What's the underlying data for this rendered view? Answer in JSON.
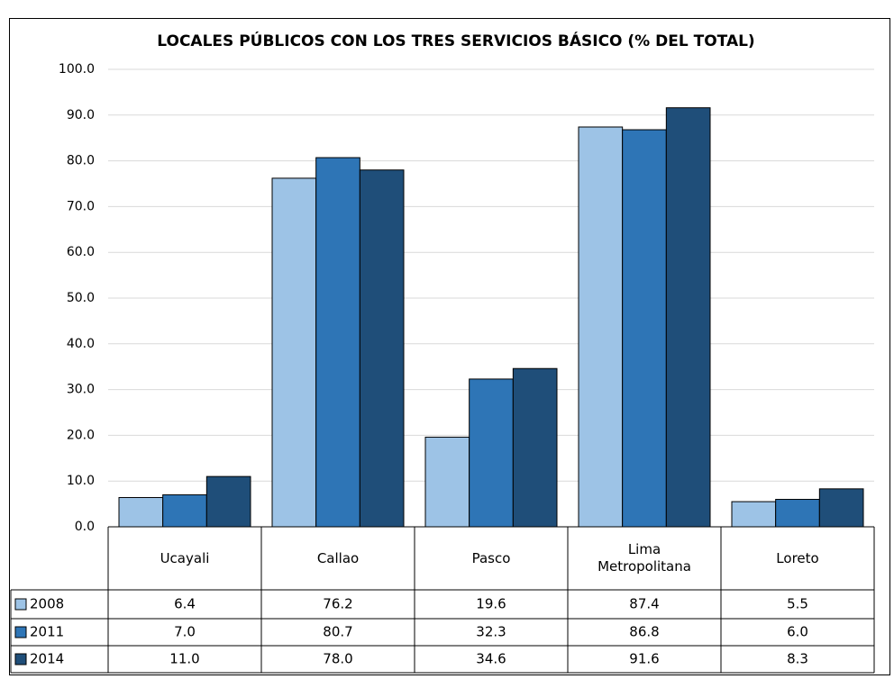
{
  "chart_data": {
    "type": "bar",
    "title": "LOCALES PÚBLICOS CON LOS TRES SERVICIOS BÁSICO (% DEL TOTAL)",
    "categories": [
      "Ucayali",
      "Callao",
      "Pasco",
      "Lima Metropolitana",
      "Loreto"
    ],
    "series": [
      {
        "name": "2008",
        "color": "#9dc3e6",
        "values": [
          6.4,
          76.2,
          19.6,
          87.4,
          5.5
        ],
        "value_labels": [
          "6.4",
          "76.2",
          "19.6",
          "87.4",
          "5.5"
        ]
      },
      {
        "name": "2011",
        "color": "#2e75b6",
        "values": [
          7.0,
          80.7,
          32.3,
          86.8,
          6.0
        ],
        "value_labels": [
          "7.0",
          "80.7",
          "32.3",
          "86.8",
          "6.0"
        ]
      },
      {
        "name": "2014",
        "color": "#1f4e79",
        "values": [
          11.0,
          78.0,
          34.6,
          91.6,
          8.3
        ],
        "value_labels": [
          "11.0",
          "78.0",
          "34.6",
          "91.6",
          "8.3"
        ]
      }
    ],
    "ylim": [
      0,
      100
    ],
    "yticks": [
      {
        "value": 0,
        "label": "0.0"
      },
      {
        "value": 10,
        "label": "10.0"
      },
      {
        "value": 20,
        "label": "20.0"
      },
      {
        "value": 30,
        "label": "30.0"
      },
      {
        "value": 40,
        "label": "40.0"
      },
      {
        "value": 50,
        "label": "50.0"
      },
      {
        "value": 60,
        "label": "60.0"
      },
      {
        "value": 70,
        "label": "70.0"
      },
      {
        "value": 80,
        "label": "80.0"
      },
      {
        "value": 90,
        "label": "90.0"
      },
      {
        "value": 100,
        "label": "100.0"
      }
    ],
    "grid": true
  }
}
